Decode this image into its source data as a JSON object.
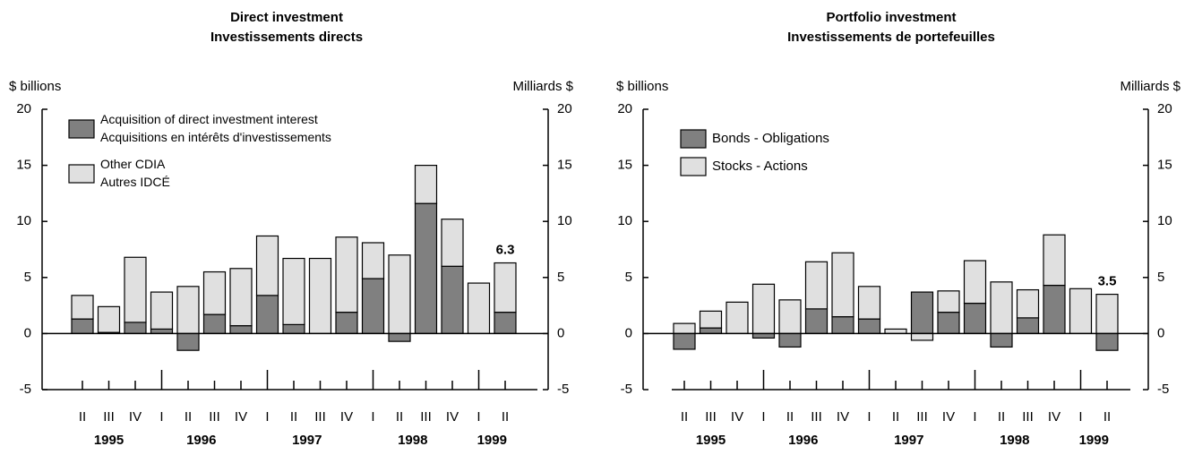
{
  "chart_data": [
    {
      "type": "bar",
      "stacked": true,
      "title": "Direct investment",
      "subtitle": "Investissements directs",
      "y_label": "$ billions",
      "y2_label": "Milliards $",
      "categories": [
        "II",
        "III",
        "IV",
        "I",
        "II",
        "III",
        "IV",
        "I",
        "II",
        "III",
        "IV",
        "I",
        "II",
        "III",
        "IV",
        "I",
        "II"
      ],
      "years": [
        "1995",
        "1996",
        "1997",
        "1998",
        "1999"
      ],
      "series": [
        {
          "name": "Acquisition of direct investment interest\nAcquisitions en intérêts d'investissements",
          "color": "#808080",
          "values": [
            1.3,
            0.1,
            1.0,
            0.4,
            -1.5,
            1.7,
            0.7,
            3.4,
            0.8,
            0,
            1.9,
            4.9,
            -0.7,
            11.6,
            6.0,
            0,
            1.9
          ]
        },
        {
          "name": "Other CDIA\nAutres IDCÉ",
          "color": "#e0e0e0",
          "values": [
            2.1,
            2.3,
            5.8,
            3.3,
            4.2,
            3.8,
            5.1,
            5.3,
            5.9,
            6.7,
            6.7,
            3.2,
            7.0,
            3.4,
            4.2,
            4.5,
            4.4
          ]
        }
      ],
      "annotations": [
        {
          "text": "6.3",
          "value": 6.3
        }
      ],
      "ylim": [
        -5,
        20
      ],
      "yticks": [
        -5,
        0,
        5,
        10,
        15,
        20
      ]
    },
    {
      "type": "bar",
      "stacked": true,
      "title": "Portfolio investment",
      "subtitle": "Investissements de portefeuilles",
      "y_label": "$ billions",
      "y2_label": "Milliards $",
      "categories": [
        "II",
        "III",
        "IV",
        "I",
        "II",
        "III",
        "IV",
        "I",
        "II",
        "III",
        "IV",
        "I",
        "II",
        "III",
        "IV",
        "I",
        "II"
      ],
      "years": [
        "1995",
        "1996",
        "1997",
        "1998",
        "1999"
      ],
      "series": [
        {
          "name": "Bonds - Obligations",
          "color": "#808080",
          "values": [
            -1.4,
            0.5,
            0,
            -0.4,
            -1.2,
            2.2,
            1.5,
            1.3,
            0,
            3.7,
            1.9,
            2.7,
            -1.2,
            1.4,
            4.3,
            0,
            -1.5
          ]
        },
        {
          "name": "Stocks - Actions",
          "color": "#e0e0e0",
          "values": [
            0.9,
            1.5,
            2.8,
            4.4,
            3.0,
            4.2,
            5.7,
            2.9,
            0.4,
            -0.6,
            1.9,
            3.8,
            4.6,
            2.5,
            4.5,
            4.0,
            3.5
          ]
        }
      ],
      "annotations": [
        {
          "text": "3.5",
          "value": 3.5
        }
      ],
      "ylim": [
        -5,
        20
      ],
      "yticks": [
        -5,
        0,
        5,
        10,
        15,
        20
      ]
    }
  ]
}
